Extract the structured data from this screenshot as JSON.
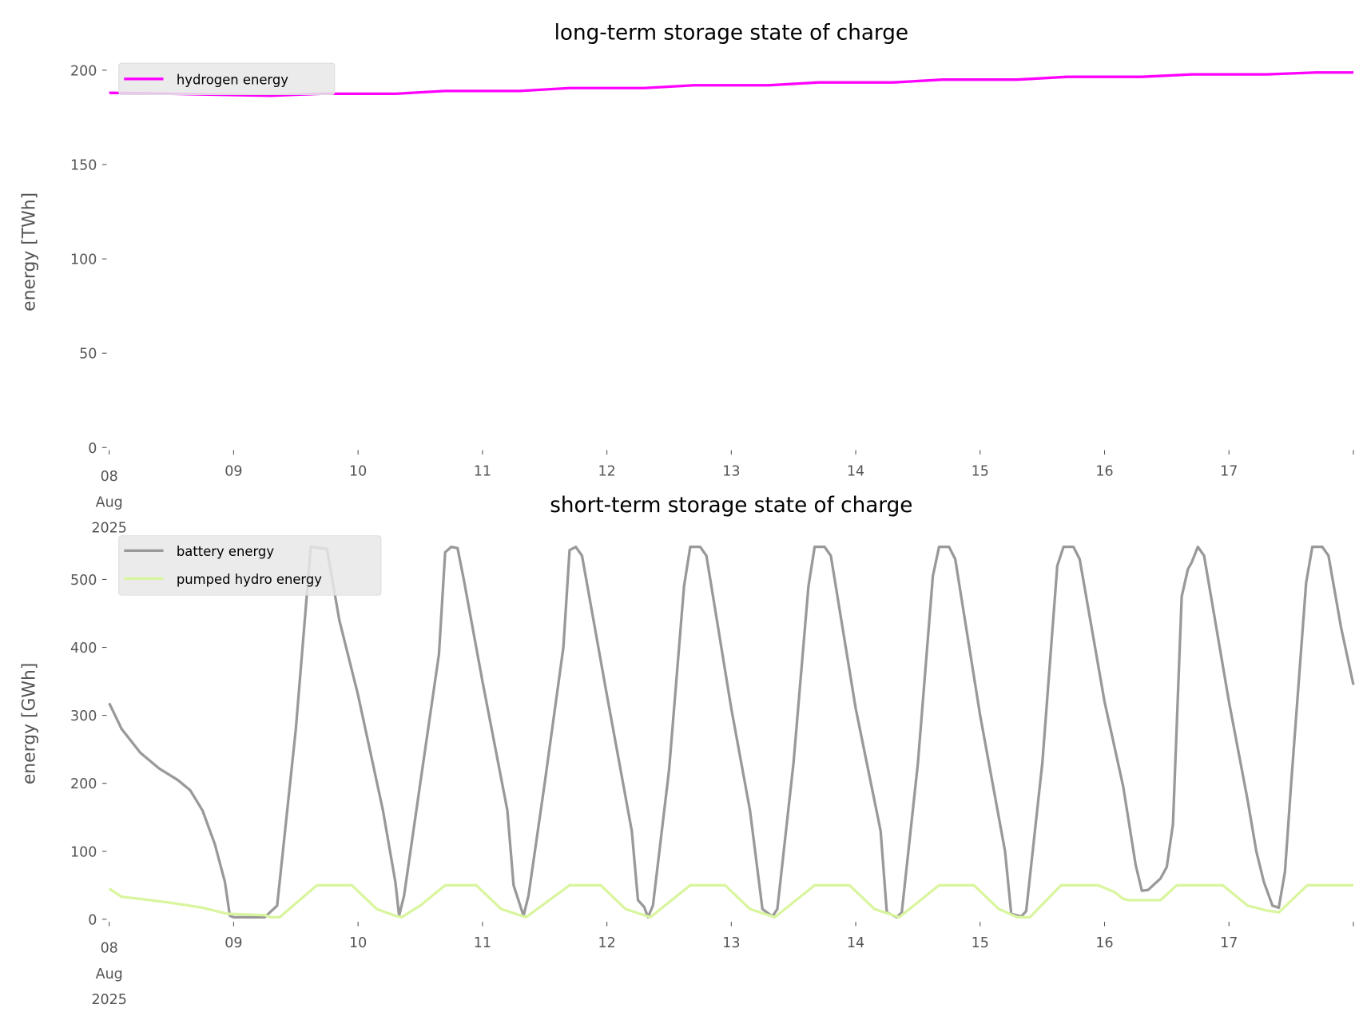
{
  "chart_data": [
    {
      "type": "line",
      "title": "long-term storage state of charge",
      "xlabel": "",
      "ylabel": "energy [TWh]",
      "xlim": [
        0,
        10
      ],
      "x_unit": "days since 08 Aug 2025",
      "ylim": [
        0,
        200
      ],
      "yticks": [
        0,
        50,
        100,
        150,
        200
      ],
      "ytick_labels": [
        "0",
        "50",
        "100",
        "150",
        "200"
      ],
      "xtick_labels": [
        "08",
        "09",
        "10",
        "11",
        "12",
        "13",
        "14",
        "15",
        "16",
        "17"
      ],
      "xtick_first_extra": [
        "Aug",
        "2025"
      ],
      "legend_position": "top-left",
      "grid": false,
      "series": [
        {
          "name": "hydrogen energy",
          "color": "#ff00ff",
          "x": [
            0,
            0.5,
            1.0,
            1.3,
            1.7,
            2.0,
            2.3,
            2.7,
            3.3,
            3.7,
            4.3,
            4.7,
            5.3,
            5.7,
            6.3,
            6.7,
            7.3,
            7.7,
            8.3,
            8.7,
            9.3,
            9.7,
            10
          ],
          "y": [
            188,
            187.5,
            186.8,
            186.5,
            187.5,
            187.5,
            187.5,
            189,
            189,
            190.5,
            190.5,
            192,
            192,
            193.5,
            193.5,
            195,
            195,
            196.5,
            196.5,
            197.8,
            197.8,
            198.8,
            198.8
          ]
        }
      ]
    },
    {
      "type": "line",
      "title": "short-term storage state of charge",
      "xlabel": "",
      "ylabel": "energy [GWh]",
      "xlim": [
        0,
        10
      ],
      "x_unit": "days since 08 Aug 2025",
      "ylim": [
        0,
        560
      ],
      "yticks": [
        0,
        100,
        200,
        300,
        400,
        500
      ],
      "ytick_labels": [
        "0",
        "100",
        "200",
        "300",
        "400",
        "500"
      ],
      "xtick_labels": [
        "08",
        "09",
        "10",
        "11",
        "12",
        "13",
        "14",
        "15",
        "16",
        "17"
      ],
      "xtick_first_extra": [
        "Aug",
        "2025"
      ],
      "legend_position": "top-left",
      "grid": false,
      "series": [
        {
          "name": "battery energy",
          "color": "#999999",
          "x": [
            0,
            0.1,
            0.25,
            0.4,
            0.55,
            0.65,
            0.75,
            0.85,
            0.93,
            0.97,
            1.0,
            1.25,
            1.35,
            1.5,
            1.62,
            1.75,
            1.85,
            2.0,
            2.2,
            2.3,
            2.33,
            2.37,
            2.5,
            2.65,
            2.7,
            2.75,
            2.8,
            2.85,
            3.0,
            3.2,
            3.25,
            3.33,
            3.37,
            3.5,
            3.65,
            3.7,
            3.75,
            3.8,
            4.0,
            4.2,
            4.25,
            4.3,
            4.33,
            4.37,
            4.5,
            4.62,
            4.67,
            4.75,
            4.8,
            5.0,
            5.15,
            5.25,
            5.33,
            5.37,
            5.5,
            5.62,
            5.67,
            5.75,
            5.8,
            6.0,
            6.2,
            6.25,
            6.33,
            6.37,
            6.5,
            6.62,
            6.67,
            6.75,
            6.8,
            7.0,
            7.2,
            7.25,
            7.33,
            7.37,
            7.5,
            7.62,
            7.67,
            7.75,
            7.8,
            8.0,
            8.15,
            8.25,
            8.3,
            8.35,
            8.45,
            8.5,
            8.55,
            8.62,
            8.67,
            8.7,
            8.75,
            8.8,
            9.0,
            9.15,
            9.22,
            9.28,
            9.35,
            9.4,
            9.45,
            9.5,
            9.62,
            9.67,
            9.75,
            9.8,
            9.9,
            10.0
          ],
          "y": [
            318,
            280,
            245,
            222,
            205,
            190,
            160,
            110,
            55,
            5,
            3,
            3,
            20,
            280,
            548,
            545,
            440,
            330,
            160,
            55,
            5,
            35,
            200,
            390,
            540,
            548,
            546,
            500,
            350,
            160,
            50,
            5,
            35,
            200,
            400,
            543,
            548,
            535,
            330,
            130,
            28,
            18,
            3,
            20,
            220,
            490,
            548,
            548,
            535,
            310,
            160,
            15,
            4,
            15,
            230,
            490,
            548,
            548,
            535,
            310,
            130,
            10,
            3,
            10,
            230,
            505,
            548,
            548,
            530,
            300,
            100,
            8,
            4,
            12,
            230,
            520,
            548,
            548,
            530,
            320,
            195,
            80,
            42,
            43,
            60,
            77,
            140,
            475,
            515,
            525,
            548,
            535,
            320,
            175,
            100,
            55,
            20,
            17,
            70,
            200,
            495,
            548,
            548,
            535,
            430,
            345
          ]
        },
        {
          "name": "pumped hydro energy",
          "color": "#d9f59e",
          "x": [
            0,
            0.1,
            0.25,
            0.5,
            0.75,
            0.95,
            1.25,
            1.3,
            1.37,
            1.67,
            1.95,
            2.15,
            2.3,
            2.35,
            2.5,
            2.7,
            2.95,
            3.15,
            3.35,
            3.7,
            3.95,
            4.15,
            4.35,
            4.67,
            4.95,
            5.15,
            5.35,
            5.67,
            5.95,
            6.15,
            6.35,
            6.67,
            6.95,
            7.15,
            7.3,
            7.4,
            7.65,
            7.95,
            8.08,
            8.15,
            8.2,
            8.45,
            8.58,
            8.95,
            9.15,
            9.3,
            9.4,
            9.63,
            10
          ],
          "y": [
            45,
            33,
            30,
            24,
            17,
            8,
            6,
            3,
            3,
            50,
            50,
            15,
            5,
            3,
            20,
            50,
            50,
            15,
            3,
            50,
            50,
            15,
            3,
            50,
            50,
            15,
            3,
            50,
            50,
            15,
            3,
            50,
            50,
            15,
            3,
            3,
            50,
            50,
            40,
            30,
            28,
            28,
            50,
            50,
            20,
            13,
            10,
            50,
            50
          ]
        }
      ]
    }
  ]
}
